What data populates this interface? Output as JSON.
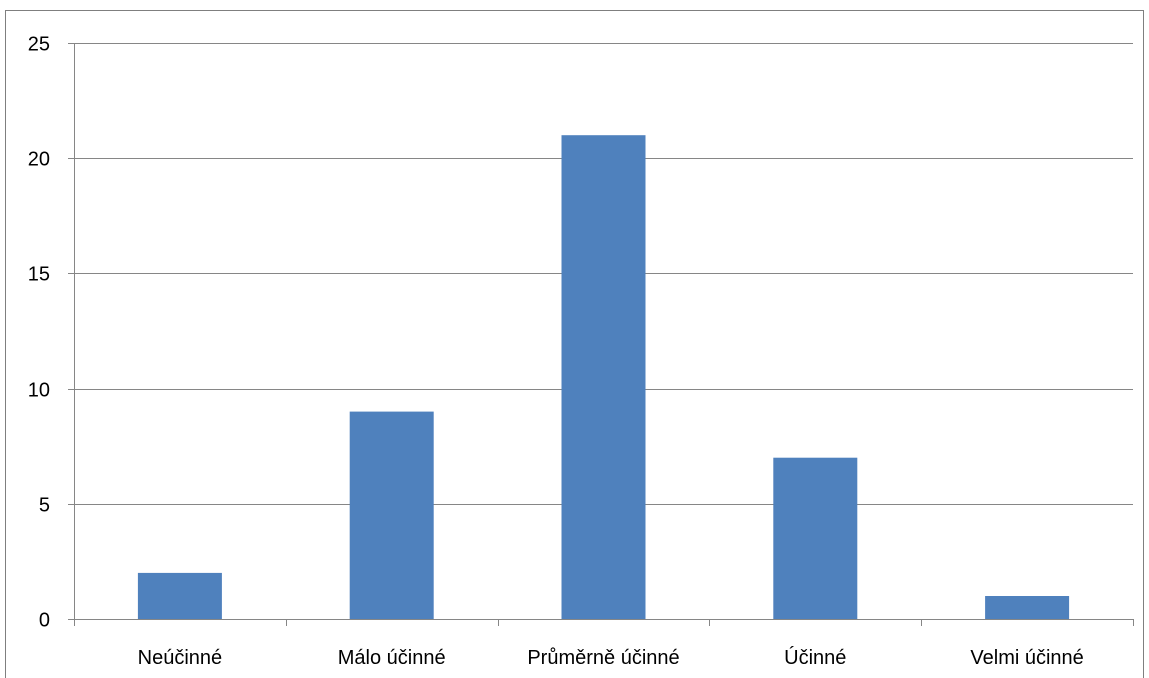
{
  "chart_data": {
    "type": "bar",
    "title": "",
    "xlabel": "",
    "ylabel": "",
    "categories": [
      "Neúčinné",
      "Málo účinné",
      "Průměrně účinné",
      "Účinné",
      "Velmi účinné"
    ],
    "values": [
      2,
      9,
      21,
      7,
      1
    ],
    "ylim": [
      0,
      25
    ],
    "yticks": [
      "0",
      "5",
      "10",
      "15",
      "20",
      "25"
    ],
    "grid": true,
    "legend": "none",
    "colors": {
      "bar": "#4f81bd",
      "grid": "#868686",
      "axis": "#868686"
    }
  }
}
